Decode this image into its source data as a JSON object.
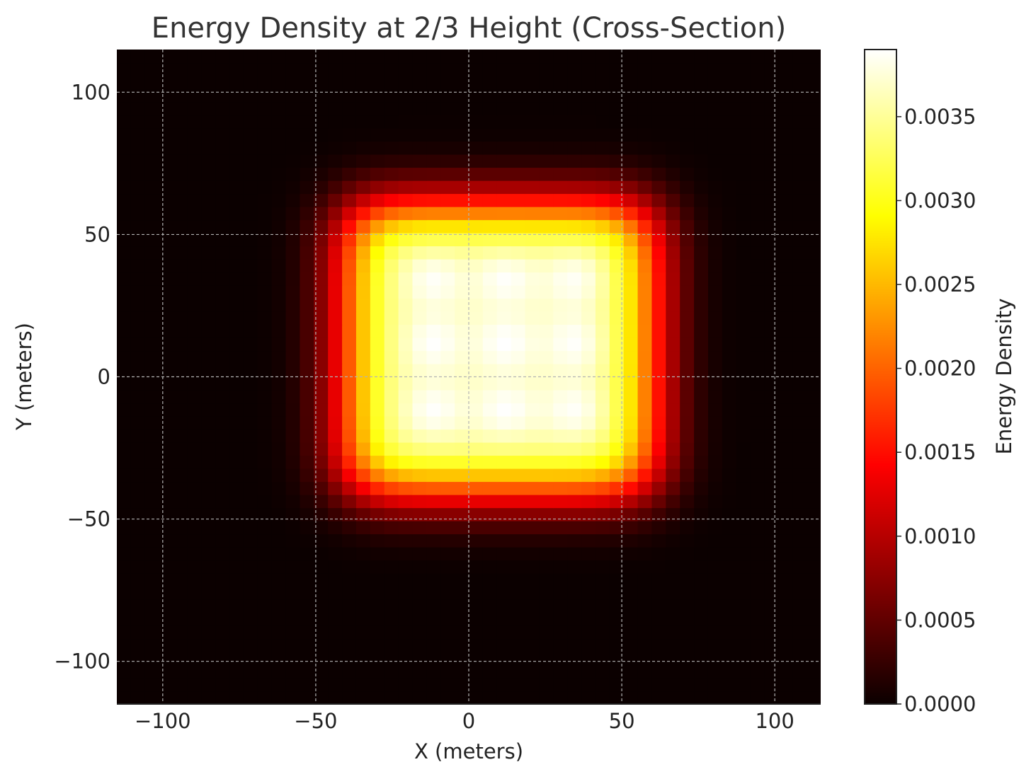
{
  "chart_data": {
    "type": "heatmap",
    "title": "Energy Density at 2/3 Height (Cross-Section)",
    "xlabel": "X (meters)",
    "ylabel": "Y (meters)",
    "xlim": [
      -115,
      115
    ],
    "ylim": [
      -115,
      115
    ],
    "x_ticks": [
      -100,
      -50,
      0,
      50,
      100
    ],
    "y_ticks": [
      -100,
      -50,
      0,
      50,
      100
    ],
    "x_tick_labels": [
      "−100",
      "−50",
      "0",
      "50",
      "100"
    ],
    "y_tick_labels": [
      "−100",
      "−50",
      "0",
      "50",
      "100"
    ],
    "grid": true,
    "colormap": "hot",
    "colorbar": {
      "label": "Energy Density",
      "range": [
        0,
        0.0039
      ],
      "ticks": [
        0,
        0.0005,
        0.001,
        0.0015,
        0.002,
        0.0025,
        0.003,
        0.0035
      ],
      "tick_labels": [
        "0.0000",
        "0.0005",
        "0.0010",
        "0.0015",
        "0.0020",
        "0.0025",
        "0.0030",
        "0.0035"
      ]
    },
    "field": {
      "grid_x": [
        -115,
        115
      ],
      "grid_y": [
        -115,
        115
      ],
      "cells": 50,
      "source_x_range": [
        -40,
        60
      ],
      "source_y_range": [
        -40,
        60
      ],
      "peak_value": 0.0039,
      "spread_meters": 10,
      "hot_spots": [
        {
          "x": -12,
          "y": 35
        },
        {
          "x": 12,
          "y": 35
        },
        {
          "x": 35,
          "y": 35
        },
        {
          "x": -12,
          "y": 12
        },
        {
          "x": 12,
          "y": 12
        },
        {
          "x": 35,
          "y": 12
        },
        {
          "x": -12,
          "y": -12
        },
        {
          "x": 12,
          "y": -12
        },
        {
          "x": 35,
          "y": -12
        }
      ]
    }
  }
}
